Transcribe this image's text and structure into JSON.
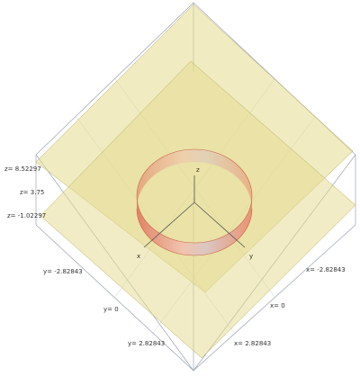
{
  "axes": {
    "x": "x",
    "y": "y",
    "z": "z"
  },
  "z_ticks": [
    "z= 8.52297",
    "z= 3.75",
    "z= -1.02297"
  ],
  "y_ticks": [
    "y= -2.82843",
    "y= 0",
    "y= 2.82843"
  ],
  "x_ticks": [
    "x= -2.82843",
    "x= 0",
    "x= 2.82843"
  ]
}
